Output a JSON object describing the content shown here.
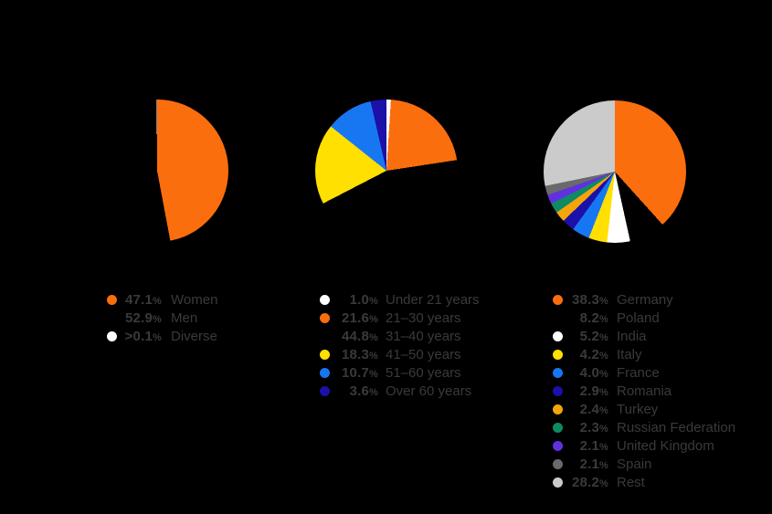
{
  "canvas": {
    "background": "#000000",
    "text_color": "#3A3A3A"
  },
  "percent_symbol": "%",
  "chart_data": [
    {
      "type": "pie",
      "name": "gender-distribution",
      "direction": "clockwise",
      "start_angle_deg": 0,
      "legend_position": "bottom",
      "slices": [
        {
          "label": "Women",
          "pct": "47.1",
          "value": 47.1,
          "color": "#FA6E0E"
        },
        {
          "label": "Men",
          "pct": "52.9",
          "value": 52.9,
          "color": "#000000"
        },
        {
          "label": "Diverse",
          "pct": ">0.1",
          "value": 0.1,
          "color": "#FFFFFF"
        }
      ]
    },
    {
      "type": "pie",
      "name": "age-distribution",
      "direction": "clockwise",
      "start_angle_deg": 0,
      "legend_position": "bottom",
      "slices": [
        {
          "label": "Under 21 years",
          "pct": "1.0",
          "value": 1.0,
          "color": "#FFFFFF"
        },
        {
          "label": "21–30 years",
          "pct": "21.6",
          "value": 21.6,
          "color": "#FA6E0E"
        },
        {
          "label": "31–40 years",
          "pct": "44.8",
          "value": 44.8,
          "color": "#000000"
        },
        {
          "label": "41–50 years",
          "pct": "18.3",
          "value": 18.3,
          "color": "#FFE000"
        },
        {
          "label": "51–60 years",
          "pct": "10.7",
          "value": 10.7,
          "color": "#1777F2"
        },
        {
          "label": "Over 60 years",
          "pct": "3.6",
          "value": 3.6,
          "color": "#1B10A8"
        }
      ]
    },
    {
      "type": "pie",
      "name": "country-distribution",
      "direction": "clockwise",
      "start_angle_deg": 0,
      "legend_position": "bottom",
      "slices": [
        {
          "label": "Germany",
          "pct": "38.3",
          "value": 38.3,
          "color": "#FA6E0E"
        },
        {
          "label": "Poland",
          "pct": "8.2",
          "value": 8.2,
          "color": "#000000"
        },
        {
          "label": "India",
          "pct": "5.2",
          "value": 5.2,
          "color": "#FFFFFF"
        },
        {
          "label": "Italy",
          "pct": "4.2",
          "value": 4.2,
          "color": "#FFE000"
        },
        {
          "label": "France",
          "pct": "4.0",
          "value": 4.0,
          "color": "#1777F2"
        },
        {
          "label": "Romania",
          "pct": "2.9",
          "value": 2.9,
          "color": "#1B10A8"
        },
        {
          "label": "Turkey",
          "pct": "2.4",
          "value": 2.4,
          "color": "#F5A40B"
        },
        {
          "label": "Russian Federation",
          "pct": "2.3",
          "value": 2.3,
          "color": "#0E8A64"
        },
        {
          "label": "United Kingdom",
          "pct": "2.1",
          "value": 2.1,
          "color": "#6130E0"
        },
        {
          "label": "Spain",
          "pct": "2.1",
          "value": 2.1,
          "color": "#6A6A6A"
        },
        {
          "label": "Rest",
          "pct": "28.2",
          "value": 28.2,
          "color": "#CBCBCB"
        }
      ]
    }
  ]
}
